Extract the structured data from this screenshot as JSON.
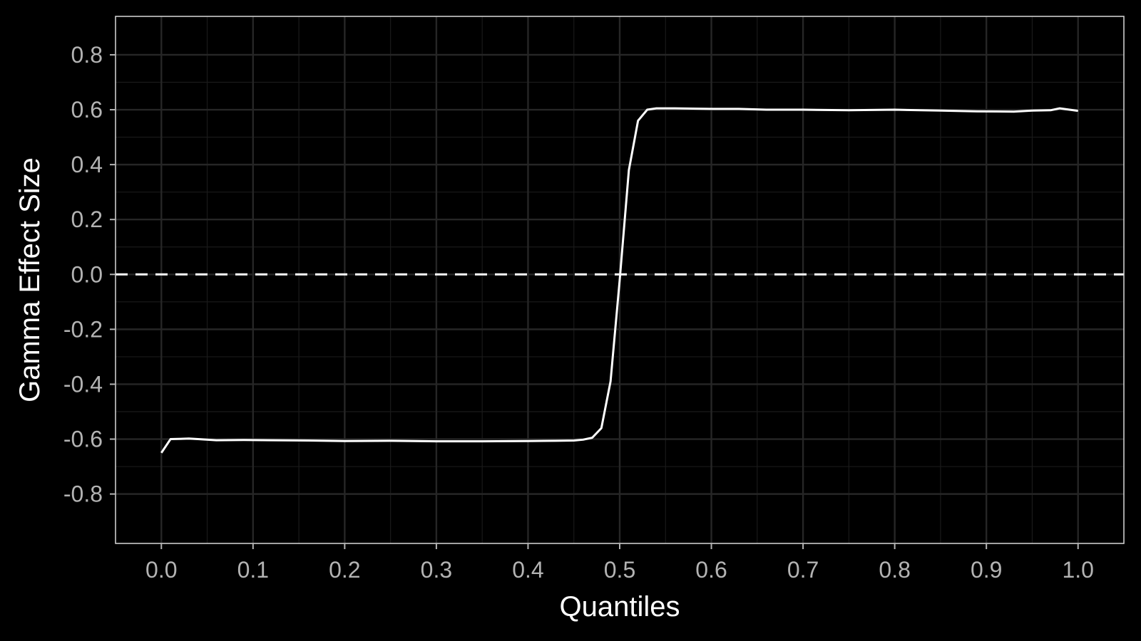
{
  "chart_data": {
    "type": "line",
    "title": "",
    "xlabel": "Quantiles",
    "ylabel": "Gamma Effect Size",
    "xlim": [
      -0.05,
      1.05
    ],
    "ylim": [
      -0.98,
      0.94
    ],
    "x_ticks": [
      0.0,
      0.1,
      0.2,
      0.3,
      0.4,
      0.5,
      0.6,
      0.7,
      0.8,
      0.9,
      1.0
    ],
    "x_tick_labels": [
      "0.0",
      "0.1",
      "0.2",
      "0.3",
      "0.4",
      "0.5",
      "0.6",
      "0.7",
      "0.8",
      "0.9",
      "1.0"
    ],
    "y_ticks": [
      -0.8,
      -0.6,
      -0.4,
      -0.2,
      0.0,
      0.2,
      0.4,
      0.6,
      0.8
    ],
    "y_tick_labels": [
      "-0.8",
      "-0.6",
      "-0.4",
      "-0.2",
      "0.0",
      "0.2",
      "0.4",
      "0.6",
      "0.8"
    ],
    "grid": true,
    "reference_line": {
      "y": 0.0,
      "style": "dashed"
    },
    "series": [
      {
        "x": [
          0.0,
          0.01,
          0.03,
          0.04,
          0.06,
          0.09,
          0.12,
          0.16,
          0.2,
          0.25,
          0.3,
          0.35,
          0.4,
          0.43,
          0.45,
          0.46,
          0.47,
          0.48,
          0.49,
          0.5,
          0.51,
          0.52,
          0.53,
          0.54,
          0.56,
          0.6,
          0.63,
          0.66,
          0.7,
          0.75,
          0.8,
          0.85,
          0.89,
          0.93,
          0.95,
          0.97,
          0.98,
          1.0
        ],
        "y": [
          -0.65,
          -0.6,
          -0.598,
          -0.6,
          -0.604,
          -0.603,
          -0.604,
          -0.605,
          -0.607,
          -0.606,
          -0.608,
          -0.608,
          -0.607,
          -0.606,
          -0.605,
          -0.602,
          -0.595,
          -0.56,
          -0.39,
          -0.02,
          0.38,
          0.56,
          0.6,
          0.605,
          0.605,
          0.603,
          0.603,
          0.6,
          0.6,
          0.598,
          0.6,
          0.597,
          0.594,
          0.593,
          0.597,
          0.598,
          0.605,
          0.596
        ]
      }
    ]
  },
  "colors": {
    "background": "#000000",
    "panel": "#000000",
    "panel_border": "#d9d9d9",
    "grid_major": "#262626",
    "grid_minor": "#1a1a1a",
    "line": "#ffffff",
    "tick_label": "#b3b3b3",
    "axis_title": "#ffffff"
  }
}
